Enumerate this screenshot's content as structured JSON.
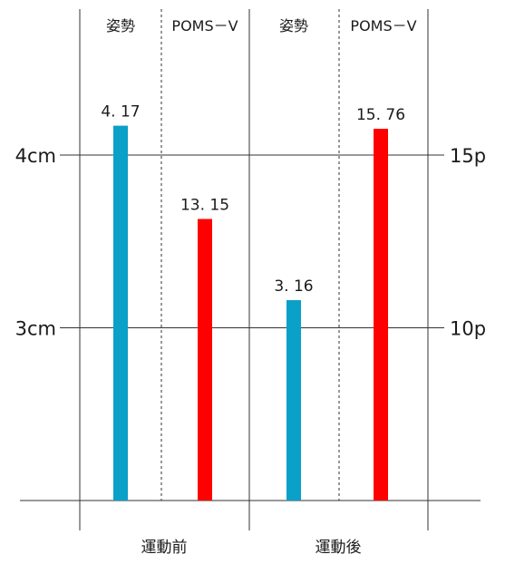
{
  "chart_data": {
    "type": "bar",
    "columns": [
      "姿勢",
      "POMS－V",
      "姿勢",
      "POMS－V"
    ],
    "groups": [
      "運動前",
      "運動後"
    ],
    "series": [
      {
        "name": "姿勢",
        "axis": "left",
        "color": "#0aa0c8",
        "values": [
          4.17,
          3.16
        ],
        "labels": [
          "4. 17",
          "3. 16"
        ]
      },
      {
        "name": "POMS－V",
        "axis": "right",
        "color": "#ff0000",
        "values": [
          13.15,
          15.76
        ],
        "labels": [
          "13. 15",
          "15. 76"
        ]
      }
    ],
    "left_axis": {
      "ylim": [
        2,
        4.5
      ],
      "ticks": [
        {
          "v": 3,
          "label": "3cm"
        },
        {
          "v": 4,
          "label": "4cm"
        }
      ]
    },
    "right_axis": {
      "ylim": [
        5,
        17.5
      ],
      "ticks": [
        {
          "v": 10,
          "label": "10p"
        },
        {
          "v": 15,
          "label": "15p"
        }
      ]
    },
    "grid": true
  }
}
